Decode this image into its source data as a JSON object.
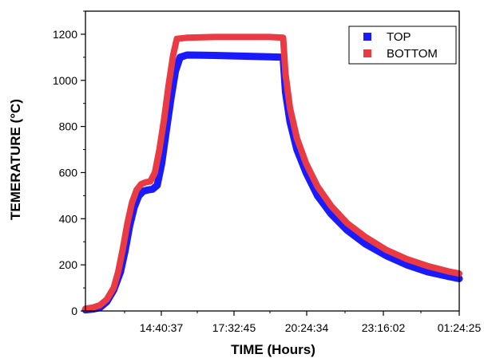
{
  "chart_data": {
    "type": "line",
    "title": "",
    "xlabel": "TIME (Hours)",
    "ylabel": "TEMERATURE (°C)",
    "x_unit": "HH:MM:SS clock time (continues past midnight)",
    "xlim": [
      "11:48:29",
      "01:24:25"
    ],
    "ylim": [
      0,
      1300
    ],
    "x_tick_labels": [
      "14:40:37",
      "17:32:45",
      "20:24:34",
      "23:16:02",
      "01:24:25"
    ],
    "y_tick_labels": [
      "0",
      "200",
      "400",
      "600",
      "800",
      "1000",
      "1200"
    ],
    "y_ticks": [
      0,
      200,
      400,
      600,
      800,
      1000,
      1200
    ],
    "grid": false,
    "legend_position": "top-right",
    "series": [
      {
        "name": "TOP",
        "color": "#1a1aff",
        "points": [
          [
            "11:48:29",
            5
          ],
          [
            "12:05:00",
            8
          ],
          [
            "12:20:00",
            15
          ],
          [
            "12:35:00",
            40
          ],
          [
            "12:50:00",
            90
          ],
          [
            "13:05:00",
            170
          ],
          [
            "13:15:00",
            260
          ],
          [
            "13:25:00",
            370
          ],
          [
            "13:35:00",
            450
          ],
          [
            "13:45:00",
            500
          ],
          [
            "13:55:00",
            520
          ],
          [
            "14:05:00",
            525
          ],
          [
            "14:15:00",
            528
          ],
          [
            "14:25:00",
            545
          ],
          [
            "14:35:00",
            640
          ],
          [
            "14:45:00",
            780
          ],
          [
            "14:55:00",
            920
          ],
          [
            "15:05:00",
            1040
          ],
          [
            "15:15:00",
            1100
          ],
          [
            "15:30:00",
            1110
          ],
          [
            "16:30:00",
            1108
          ],
          [
            "17:30:00",
            1105
          ],
          [
            "18:30:00",
            1102
          ],
          [
            "19:00:00",
            1100
          ],
          [
            "19:05:00",
            950
          ],
          [
            "19:15:00",
            820
          ],
          [
            "19:30:00",
            700
          ],
          [
            "19:50:00",
            600
          ],
          [
            "20:15:00",
            500
          ],
          [
            "20:45:00",
            420
          ],
          [
            "21:20:00",
            350
          ],
          [
            "22:00:00",
            290
          ],
          [
            "22:45:00",
            240
          ],
          [
            "23:30:00",
            200
          ],
          [
            "00:15:00",
            170
          ],
          [
            "01:00:00",
            150
          ],
          [
            "01:24:25",
            140
          ]
        ]
      },
      {
        "name": "BOTTOM",
        "color": "#ea3b45",
        "points": [
          [
            "11:48:29",
            10
          ],
          [
            "12:05:00",
            15
          ],
          [
            "12:20:00",
            25
          ],
          [
            "12:35:00",
            50
          ],
          [
            "12:50:00",
            100
          ],
          [
            "13:00:00",
            170
          ],
          [
            "13:10:00",
            270
          ],
          [
            "13:20:00",
            380
          ],
          [
            "13:30:00",
            470
          ],
          [
            "13:40:00",
            525
          ],
          [
            "13:50:00",
            550
          ],
          [
            "14:00:00",
            558
          ],
          [
            "14:10:00",
            562
          ],
          [
            "14:20:00",
            600
          ],
          [
            "14:30:00",
            700
          ],
          [
            "14:40:00",
            830
          ],
          [
            "14:50:00",
            980
          ],
          [
            "15:00:00",
            1110
          ],
          [
            "15:08:00",
            1180
          ],
          [
            "15:30:00",
            1185
          ],
          [
            "16:30:00",
            1188
          ],
          [
            "17:30:00",
            1188
          ],
          [
            "18:30:00",
            1188
          ],
          [
            "19:00:00",
            1185
          ],
          [
            "19:05:00",
            1030
          ],
          [
            "19:15:00",
            880
          ],
          [
            "19:30:00",
            750
          ],
          [
            "19:50:00",
            640
          ],
          [
            "20:15:00",
            540
          ],
          [
            "20:45:00",
            455
          ],
          [
            "21:20:00",
            380
          ],
          [
            "22:00:00",
            320
          ],
          [
            "22:45:00",
            265
          ],
          [
            "23:30:00",
            225
          ],
          [
            "00:15:00",
            195
          ],
          [
            "01:00:00",
            172
          ],
          [
            "01:24:25",
            162
          ]
        ]
      }
    ]
  }
}
